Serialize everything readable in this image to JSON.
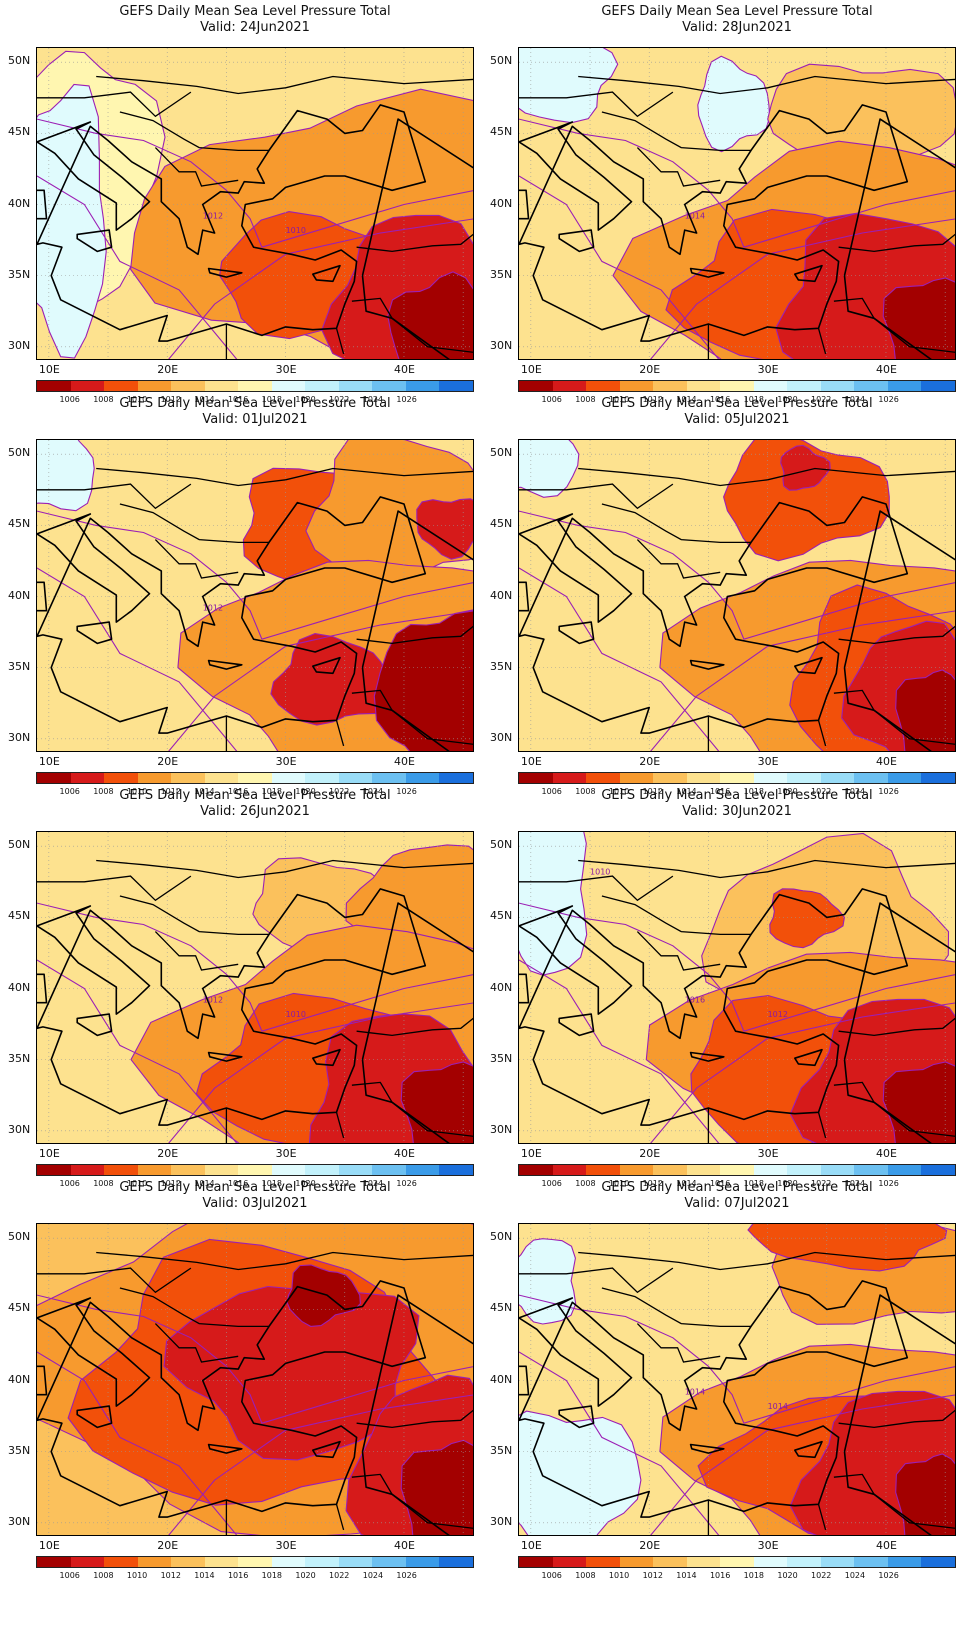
{
  "panels": [
    {
      "title": "GEFS Daily Mean Sea Level Pressure Total",
      "valid": "Valid: 24Jun2021",
      "contour_labels": [
        "1012",
        "1010"
      ]
    },
    {
      "title": "GEFS Daily Mean Sea Level Pressure Total",
      "valid": "Valid: 01Jul2021",
      "contour_labels": [
        "1012"
      ]
    },
    {
      "title": "GEFS Daily Mean Sea Level Pressure Total",
      "valid": "Valid: 26Jun2021",
      "contour_labels": [
        "1012",
        "1010"
      ]
    },
    {
      "title": "GEFS Daily Mean Sea Level Pressure Total",
      "valid": "Valid: 03Jul2021",
      "contour_labels": []
    },
    {
      "title": "GEFS Daily Mean Sea Level Pressure Total",
      "valid": "Valid: 28Jun2021",
      "contour_labels": [
        "1014"
      ]
    },
    {
      "title": "GEFS Daily Mean Sea Level Pressure Total",
      "valid": "Valid: 05Jul2021",
      "contour_labels": []
    },
    {
      "title": "GEFS Daily Mean Sea Level Pressure Total",
      "valid": "Valid: 30Jun2021",
      "contour_labels": [
        "1016",
        "1012",
        "1010"
      ]
    },
    {
      "title": "GEFS Daily Mean Sea Level Pressure Total",
      "valid": "Valid: 07Jul2021",
      "contour_labels": [
        "1014",
        "1014"
      ]
    }
  ],
  "map_extent": {
    "lon": [
      9,
      46
    ],
    "lat": [
      29,
      51
    ]
  },
  "lat_labels": [
    {
      "lat": 50,
      "label": "50N"
    },
    {
      "lat": 45,
      "label": "45N"
    },
    {
      "lat": 40,
      "label": "40N"
    },
    {
      "lat": 35,
      "label": "35N"
    },
    {
      "lat": 30,
      "label": "30N"
    }
  ],
  "lon_labels": [
    {
      "lon": 10,
      "label": "10E"
    },
    {
      "lon": 20,
      "label": "20E"
    },
    {
      "lon": 30,
      "label": "30E"
    },
    {
      "lon": 40,
      "label": "40E"
    }
  ],
  "colorbar": {
    "colors": [
      "#a30000",
      "#d61a1a",
      "#f2500a",
      "#f79a2e",
      "#fbc15c",
      "#fde28f",
      "#fff6b0",
      "#e0fbfd",
      "#c2f1fb",
      "#99dcf7",
      "#6cc0f1",
      "#3a9be8",
      "#1a6fdc"
    ],
    "labels": [
      "1006",
      "1008",
      "1010",
      "1012",
      "1014",
      "1016",
      "1018",
      "1020",
      "1022",
      "1024",
      "1026"
    ]
  },
  "contour_line_color": "#9b1fb5"
}
